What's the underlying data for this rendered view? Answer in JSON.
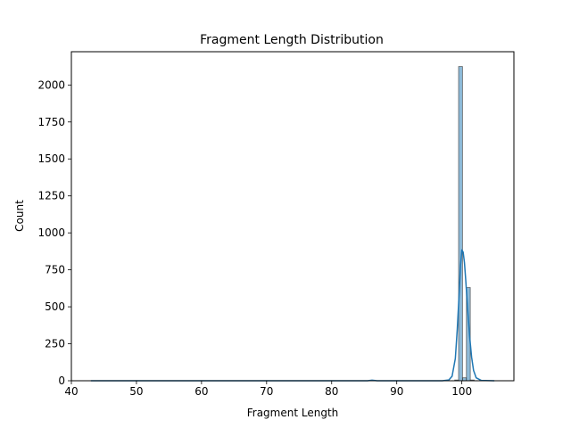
{
  "chart_data": {
    "type": "bar",
    "title": "Fragment Length Distribution",
    "xlabel": "Fragment Length",
    "ylabel": "Count",
    "xlim": [
      40,
      108
    ],
    "ylim": [
      0,
      2225
    ],
    "xticks": [
      40,
      50,
      60,
      70,
      80,
      90,
      100
    ],
    "yticks": [
      0,
      250,
      500,
      750,
      1000,
      1250,
      1500,
      1750,
      2000
    ],
    "grid": false,
    "bar_color": "#1f77b4",
    "line_color": "#1f77b4",
    "series": [
      {
        "kind": "histogram",
        "bins": [
          {
            "x0": 98.9,
            "x1": 99.5,
            "count": 5
          },
          {
            "x0": 99.5,
            "x1": 100.1,
            "count": 2125
          },
          {
            "x0": 100.1,
            "x1": 100.7,
            "count": 20
          },
          {
            "x0": 100.7,
            "x1": 101.3,
            "count": 630
          },
          {
            "x0": 101.3,
            "x1": 101.9,
            "count": 5
          }
        ]
      },
      {
        "kind": "kde",
        "x": [
          43,
          80,
          85.5,
          86.2,
          87,
          95,
          97,
          98,
          98.5,
          99,
          99.3,
          99.6,
          99.8,
          100,
          100.2,
          100.4,
          100.6,
          100.9,
          101.2,
          101.5,
          101.8,
          102.2,
          103,
          105
        ],
        "y": [
          0,
          0,
          0,
          4,
          0,
          0,
          0,
          5,
          30,
          150,
          350,
          600,
          780,
          885,
          870,
          800,
          680,
          480,
          300,
          160,
          70,
          20,
          2,
          0
        ]
      }
    ]
  }
}
